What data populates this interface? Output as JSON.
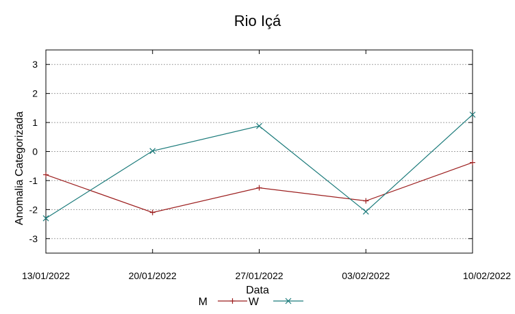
{
  "chart_data": {
    "type": "line",
    "title": "Rio Içá",
    "xlabel": "Data",
    "ylabel": "Anomalia Categorizada",
    "categories": [
      "13/01/2022",
      "20/01/2022",
      "27/01/2022",
      "03/02/2022",
      "10/02/2022"
    ],
    "ylim": [
      -3.5,
      3.5
    ],
    "yticks": [
      -3,
      -2,
      -1,
      0,
      1,
      2,
      3
    ],
    "ytick_labels": [
      "-3",
      "-2",
      "-1",
      "0",
      "1",
      "2",
      "3"
    ],
    "grid": true,
    "legend_position": "bottom-center",
    "series": [
      {
        "name": "M",
        "color": "#9b1c1c",
        "marker": "plus",
        "values": [
          -0.8,
          -2.1,
          -1.25,
          -1.7,
          -0.38
        ]
      },
      {
        "name": "W",
        "color": "#1a7a7a",
        "marker": "cross",
        "values": [
          -2.3,
          0.02,
          0.88,
          -2.07,
          1.27
        ]
      }
    ]
  }
}
